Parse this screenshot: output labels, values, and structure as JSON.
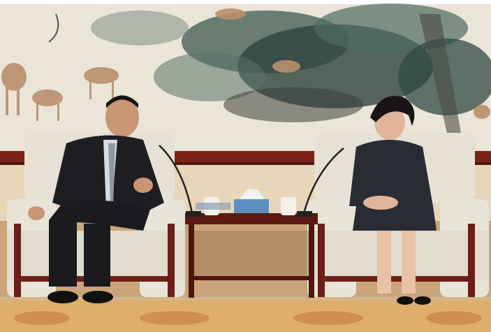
{
  "scene": {
    "description_label": "",
    "colors": {
      "painting_bg": "#e9e3d6",
      "ink_dark": "#2c3a35",
      "ink_mid": "#4f6a60",
      "wood": "#6b1f16",
      "wall": "#e7d8bf",
      "carpet": "#d9a86a",
      "chair": "#ece7dc",
      "suit": "#1d1d22",
      "dress": "#2a2c34"
    }
  }
}
